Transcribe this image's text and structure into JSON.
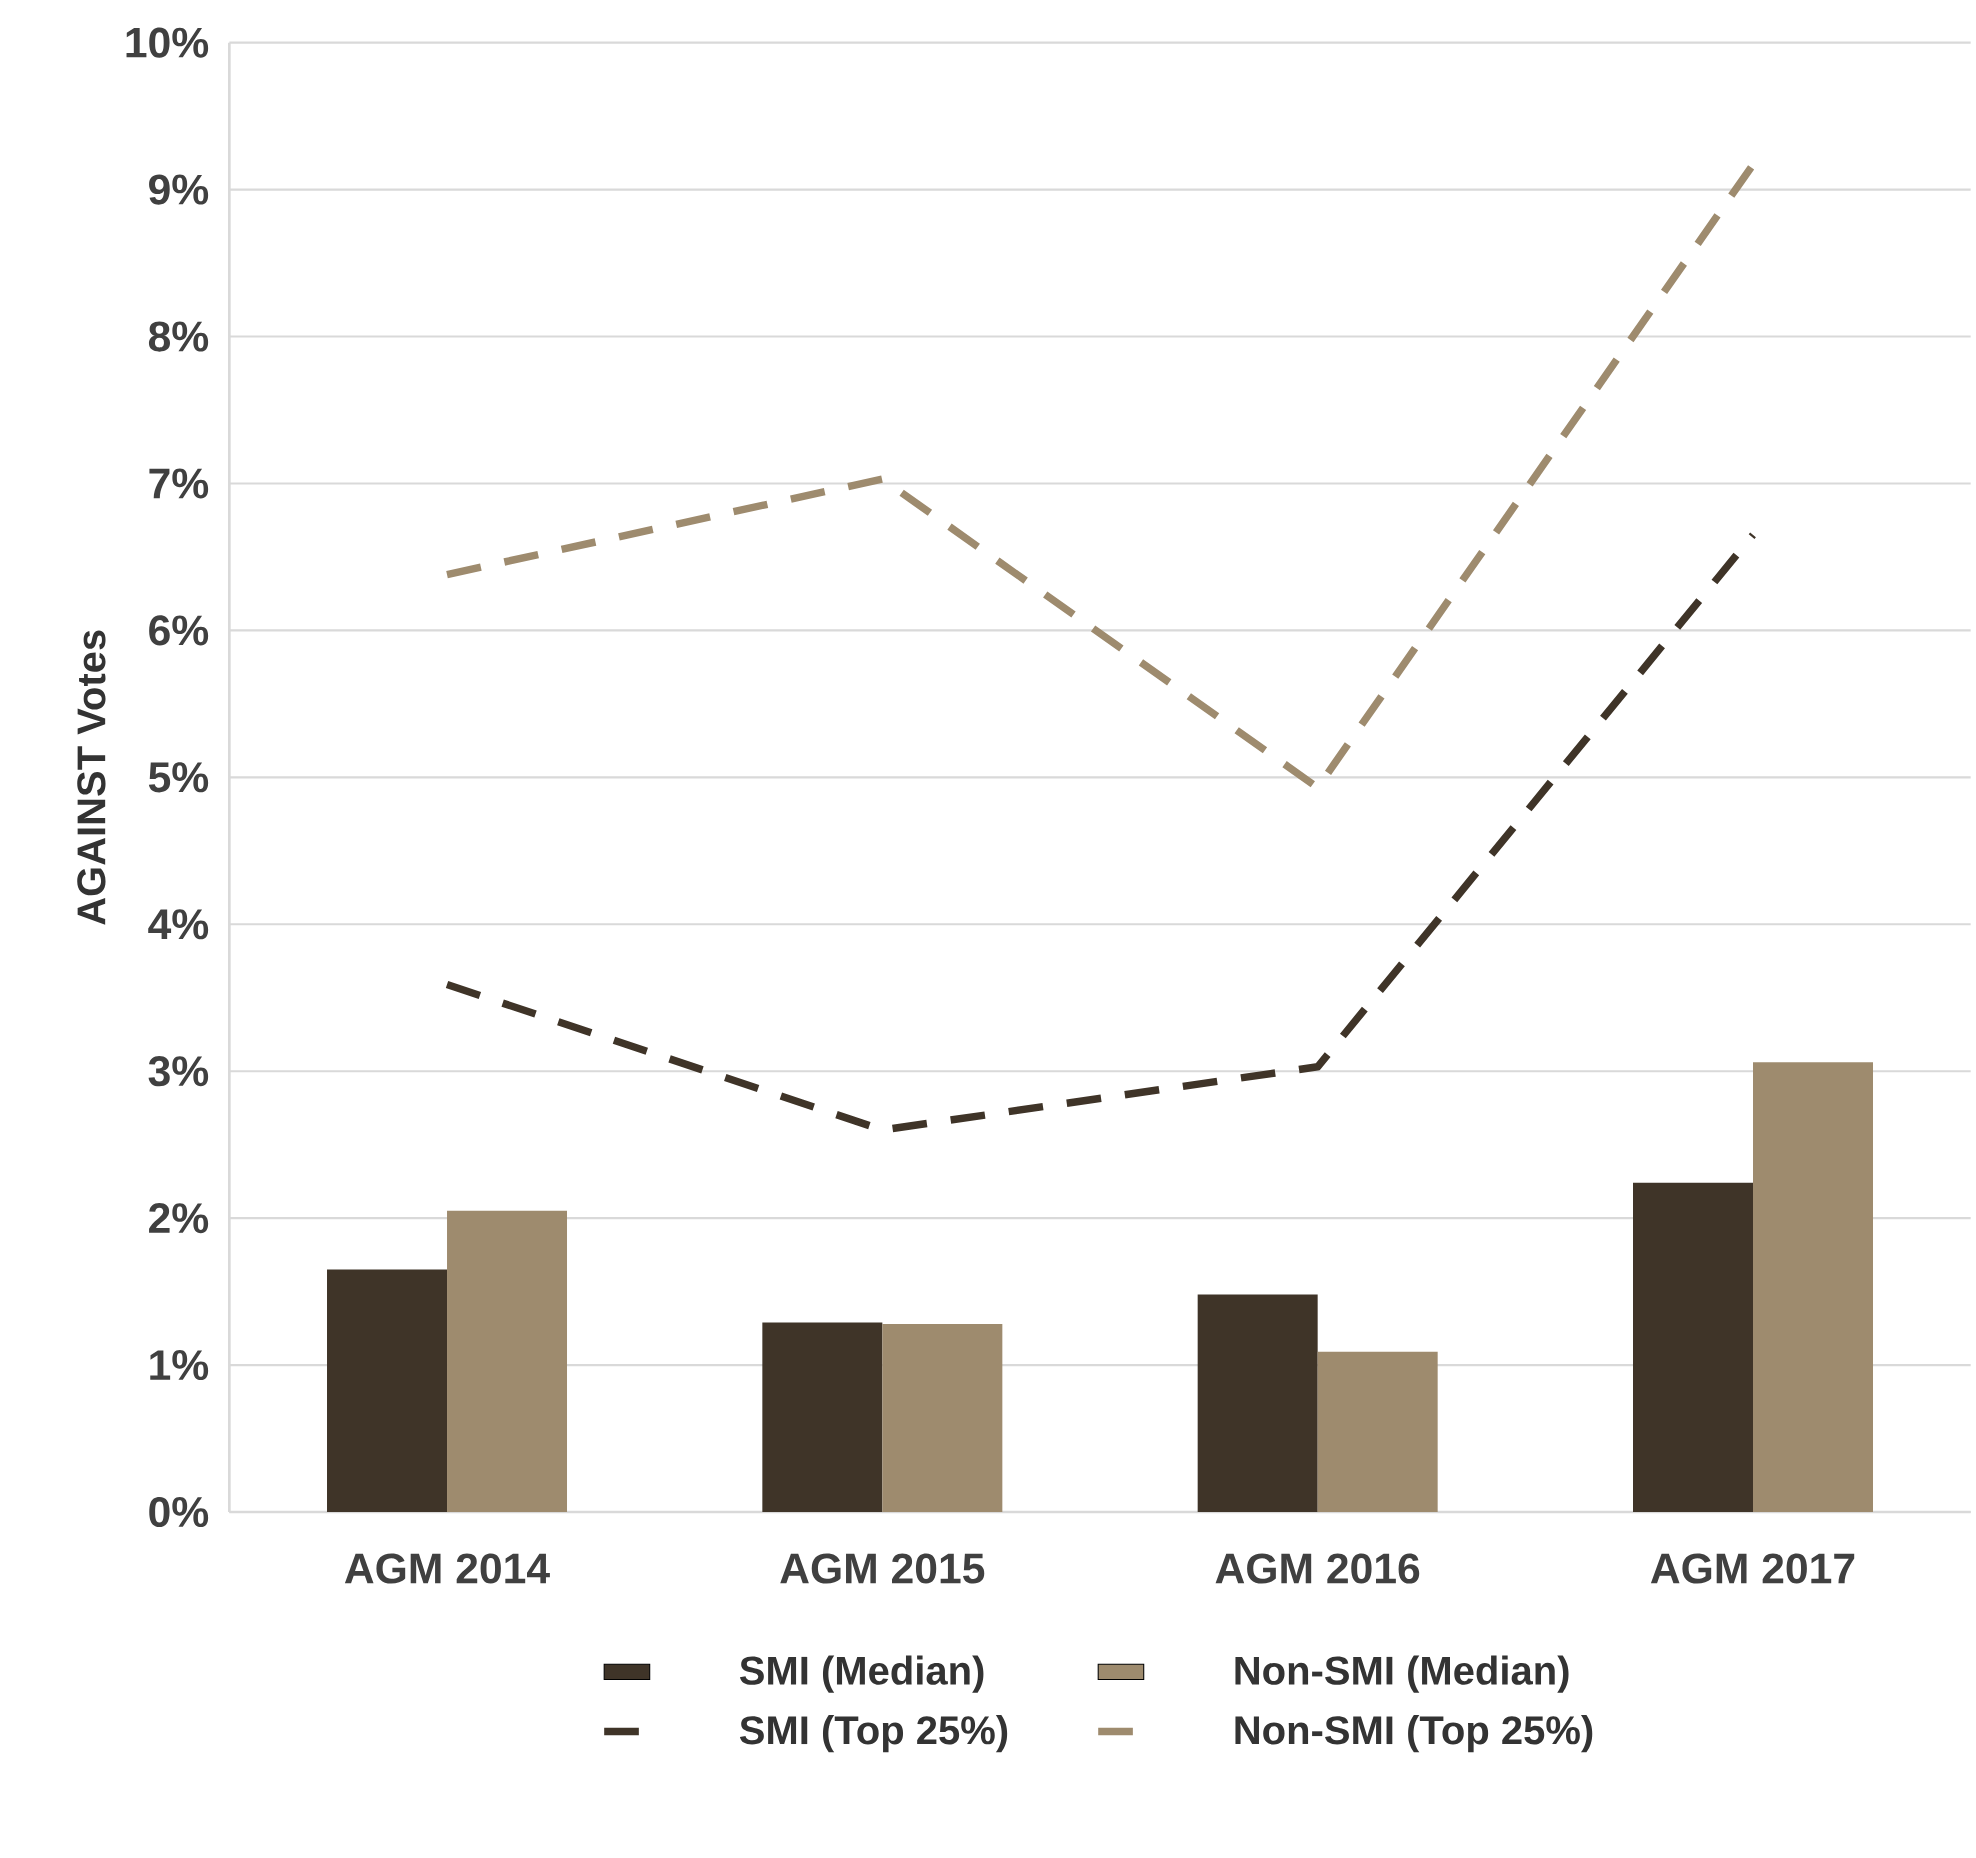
{
  "chart_data": {
    "type": "bar",
    "ylabel": "AGAINST Votes",
    "categories": [
      "AGM 2014",
      "AGM 2015",
      "AGM 2016",
      "AGM 2017"
    ],
    "series": [
      {
        "name": "SMI (Median)",
        "color": "#3f3428",
        "values": [
          1.65,
          1.29,
          1.48,
          2.24
        ]
      },
      {
        "name": "Non-SMI (Median)",
        "color": "#9e8b6e",
        "values": [
          2.05,
          1.28,
          1.09,
          3.06
        ]
      },
      {
        "name": "SMI (Top 25%)",
        "type": "line",
        "line_style": "dashed",
        "color": "#3f3428",
        "values": [
          3.59,
          2.6,
          3.03,
          6.65
        ]
      },
      {
        "name": "Non-SMI (Top 25%)",
        "type": "line",
        "line_style": "dashed",
        "color": "#9e8b6e",
        "values": [
          6.38,
          7.03,
          4.93,
          9.17
        ]
      }
    ],
    "ylim": [
      0,
      10
    ],
    "yticks": [
      {
        "value": 0,
        "label": "0%"
      },
      {
        "value": 1,
        "label": "1%"
      },
      {
        "value": 2,
        "label": "2%"
      },
      {
        "value": 3,
        "label": "3%"
      },
      {
        "value": 4,
        "label": "4%"
      },
      {
        "value": 5,
        "label": "5%"
      },
      {
        "value": 6,
        "label": "6%"
      },
      {
        "value": 7,
        "label": "7%"
      },
      {
        "value": 8,
        "label": "8%"
      },
      {
        "value": 9,
        "label": "9%"
      },
      {
        "value": 10,
        "label": "10%"
      }
    ],
    "grid": "y",
    "legend": "bottom",
    "marker": "none"
  }
}
